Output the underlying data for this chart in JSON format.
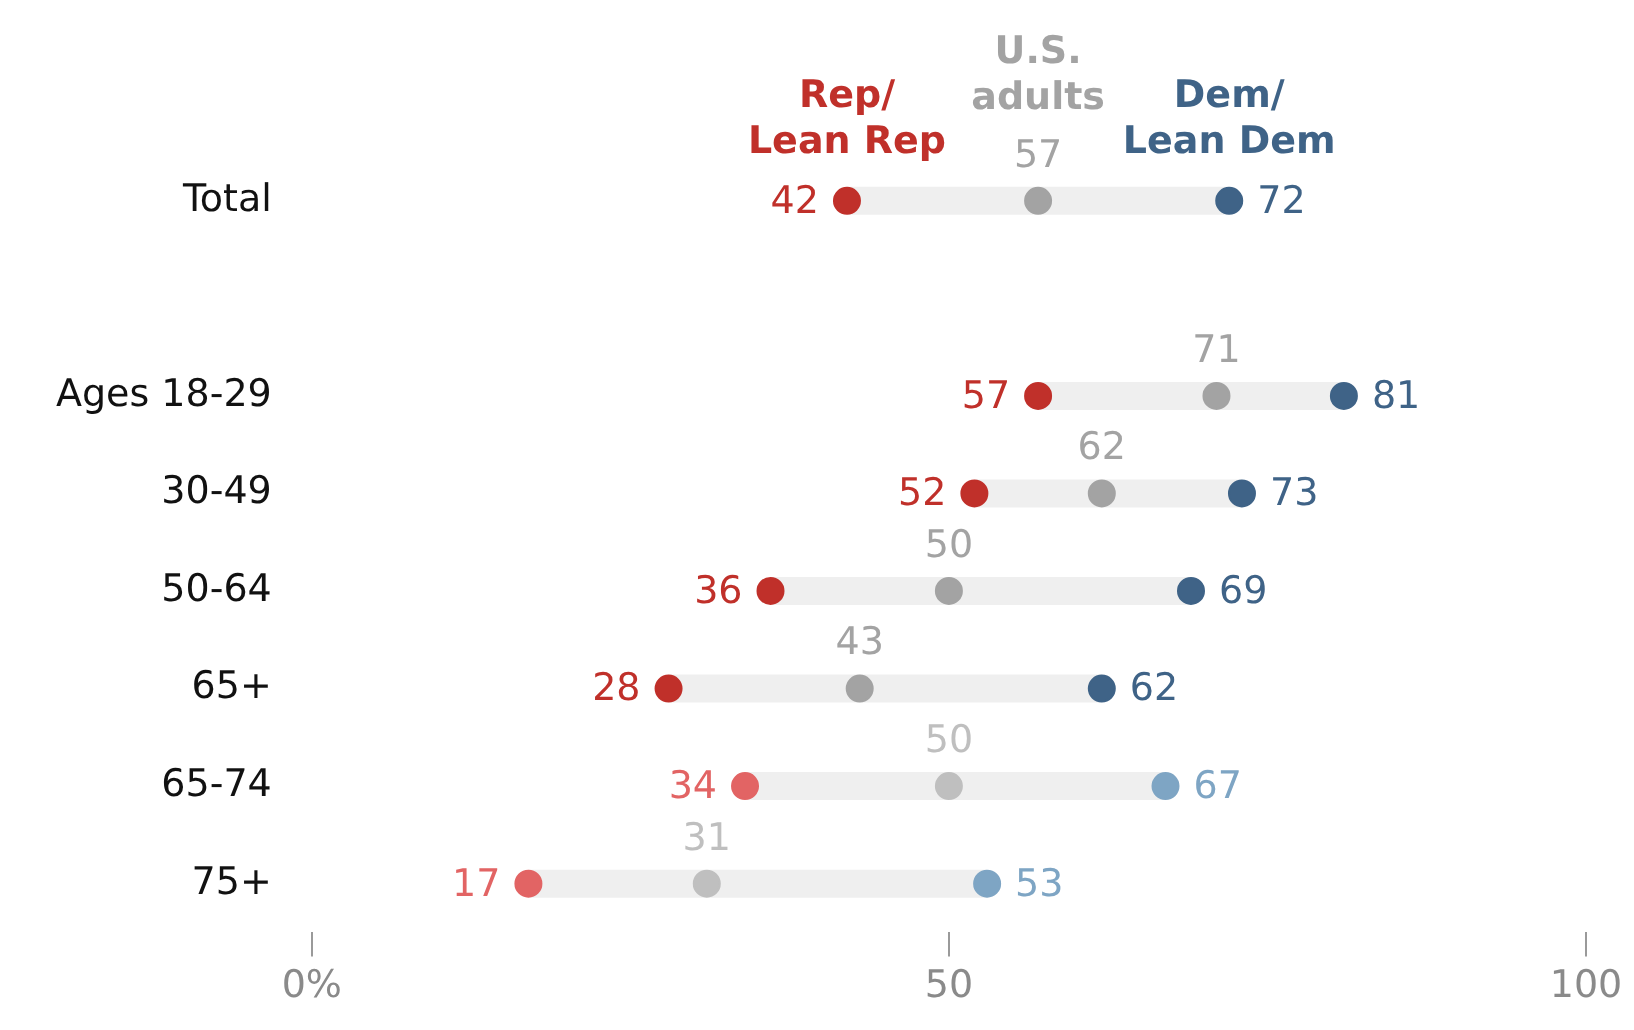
{
  "chart_data": {
    "type": "scatter",
    "orientation": "horizontal",
    "categories": [
      "Total",
      null,
      "Ages 18-29",
      "30-49",
      "50-64",
      "65+",
      "65-74",
      "75+"
    ],
    "series": [
      {
        "type": "bar",
        "color": "#efefef",
        "base": [
          42,
          null,
          57,
          52,
          36,
          28,
          34,
          17
        ],
        "values": [
          30,
          null,
          24,
          21,
          33,
          34,
          33,
          36
        ]
      },
      {
        "name": "Rep/\nLean Rep",
        "color": "#c0302a",
        "colors": [
          "#c0302a",
          null,
          "#c0302a",
          "#c0302a",
          "#c0302a",
          "#c0302a",
          "#e26464",
          "#e26464"
        ],
        "values": [
          42,
          null,
          57,
          52,
          36,
          28,
          34,
          17
        ],
        "value_labels": [
          "42",
          null,
          "57",
          "52",
          "36",
          "28",
          "34",
          "17"
        ]
      },
      {
        "name": "U.S.\nadults",
        "color": "#a3a3a3",
        "colors": [
          "#a3a3a3",
          null,
          "#a3a3a3",
          "#a3a3a3",
          "#a3a3a3",
          "#a3a3a3",
          "#bfbfbf",
          "#bfbfbf"
        ],
        "values": [
          57,
          null,
          71,
          62,
          50,
          43,
          50,
          31
        ],
        "value_labels": [
          "57",
          null,
          "71",
          "62",
          "50",
          "43",
          "50",
          "31"
        ]
      },
      {
        "name": "Dem/\nLean Dem",
        "color": "#3f6387",
        "colors": [
          "#3f6387",
          null,
          "#3f6387",
          "#3f6387",
          "#3f6387",
          "#3f6387",
          "#7ea5c4",
          "#7ea5c4"
        ],
        "values": [
          72,
          null,
          81,
          73,
          69,
          62,
          67,
          53
        ],
        "value_labels": [
          "72",
          null,
          "81",
          "73",
          "69",
          "62",
          "67",
          "53"
        ]
      }
    ],
    "xlim": [
      0,
      100
    ],
    "xticks": [
      {
        "value": 0,
        "label": "0%"
      },
      50,
      100
    ],
    "grid": false,
    "legend": false,
    "marker": "circle"
  }
}
